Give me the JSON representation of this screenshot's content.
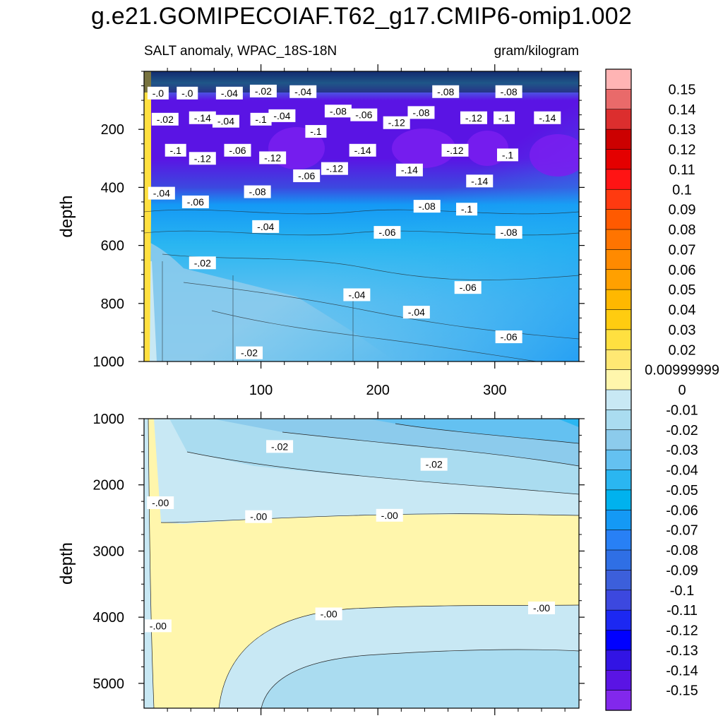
{
  "title": "g.e21.GOMIPECOIAF.T62_g17.CMIP6-omip1.002",
  "subtitle_left": "SALT anomaly, WPAC_18S-18N",
  "subtitle_right": "gram/kilogram",
  "chart_data": [
    {
      "type": "heatmap",
      "panel": "upper",
      "ylabel": "depth",
      "xlabel": "",
      "ylim": [
        1000,
        0
      ],
      "xlim": [
        0,
        372
      ],
      "x_ticks": [
        100,
        200,
        300
      ],
      "y_ticks": [
        200,
        400,
        600,
        800,
        1000
      ],
      "contour_labels": [
        {
          "text": "-.0",
          "x": 12,
          "y": 75
        },
        {
          "text": "-.0",
          "x": 37,
          "y": 75
        },
        {
          "text": "-.04",
          "x": 73,
          "y": 75
        },
        {
          "text": "-.02",
          "x": 102,
          "y": 68
        },
        {
          "text": "-.04",
          "x": 136,
          "y": 70
        },
        {
          "text": "-.08",
          "x": 258,
          "y": 70
        },
        {
          "text": "-.08",
          "x": 312,
          "y": 70
        },
        {
          "text": "-.02",
          "x": 18,
          "y": 165
        },
        {
          "text": "-.14",
          "x": 50,
          "y": 160
        },
        {
          "text": "-.04",
          "x": 70,
          "y": 172
        },
        {
          "text": "-.1",
          "x": 100,
          "y": 165
        },
        {
          "text": "-.04",
          "x": 118,
          "y": 153
        },
        {
          "text": "-.08",
          "x": 166,
          "y": 137
        },
        {
          "text": "-.06",
          "x": 188,
          "y": 150
        },
        {
          "text": "-.08",
          "x": 237,
          "y": 142
        },
        {
          "text": "-.12",
          "x": 216,
          "y": 177
        },
        {
          "text": "-.12",
          "x": 282,
          "y": 160
        },
        {
          "text": "-.1",
          "x": 308,
          "y": 160
        },
        {
          "text": "-.14",
          "x": 345,
          "y": 160
        },
        {
          "text": "-.1",
          "x": 147,
          "y": 207
        },
        {
          "text": "-.1",
          "x": 27,
          "y": 272
        },
        {
          "text": "-.12",
          "x": 50,
          "y": 300
        },
        {
          "text": "-.06",
          "x": 80,
          "y": 272
        },
        {
          "text": "-.12",
          "x": 110,
          "y": 298
        },
        {
          "text": "-.14",
          "x": 187,
          "y": 272
        },
        {
          "text": "-.12",
          "x": 266,
          "y": 272
        },
        {
          "text": "-.1",
          "x": 311,
          "y": 288
        },
        {
          "text": "-.06",
          "x": 139,
          "y": 360
        },
        {
          "text": "-.12",
          "x": 163,
          "y": 335
        },
        {
          "text": "-.14",
          "x": 227,
          "y": 340
        },
        {
          "text": "-.14",
          "x": 287,
          "y": 378
        },
        {
          "text": "-.04",
          "x": 15,
          "y": 420
        },
        {
          "text": "-.06",
          "x": 44,
          "y": 450
        },
        {
          "text": "-.08",
          "x": 97,
          "y": 415
        },
        {
          "text": "-.08",
          "x": 242,
          "y": 465
        },
        {
          "text": "-.1",
          "x": 276,
          "y": 475
        },
        {
          "text": "-.04",
          "x": 104,
          "y": 535
        },
        {
          "text": "-.06",
          "x": 208,
          "y": 555
        },
        {
          "text": "-.08",
          "x": 312,
          "y": 555
        },
        {
          "text": "-.02",
          "x": 50,
          "y": 660
        },
        {
          "text": "-.06",
          "x": 277,
          "y": 745
        },
        {
          "text": "-.04",
          "x": 182,
          "y": 770
        },
        {
          "text": "-.04",
          "x": 233,
          "y": 830
        },
        {
          "text": "-.06",
          "x": 312,
          "y": 915
        },
        {
          "text": "-.02",
          "x": 90,
          "y": 970
        }
      ]
    },
    {
      "type": "heatmap",
      "panel": "lower",
      "ylabel": "depth",
      "xlabel": "",
      "ylim": [
        5375,
        1000
      ],
      "xlim": [
        0,
        372
      ],
      "x_ticks": [
        100,
        200,
        300
      ],
      "y_ticks": [
        1000,
        2000,
        3000,
        4000,
        5000
      ],
      "contour_labels": [
        {
          "text": "-.02",
          "x": 116,
          "y": 1420
        },
        {
          "text": "-.02",
          "x": 248,
          "y": 1690
        },
        {
          "text": "-.00",
          "x": 14,
          "y": 2270
        },
        {
          "text": "-.00",
          "x": 98,
          "y": 2480
        },
        {
          "text": "-.00",
          "x": 210,
          "y": 2460
        },
        {
          "text": "-.00",
          "x": 158,
          "y": 3950
        },
        {
          "text": "-.00",
          "x": 340,
          "y": 3860
        },
        {
          "text": "-.00",
          "x": 12,
          "y": 4130
        }
      ]
    }
  ],
  "colorbar": {
    "labels": [
      "0.15",
      "0.14",
      "0.13",
      "0.12",
      "0.11",
      "0.1",
      "0.09",
      "0.08",
      "0.07",
      "0.06",
      "0.05",
      "0.04",
      "0.03",
      "0.02",
      "0.00999999",
      "0",
      "-0.01",
      "-0.02",
      "-0.03",
      "-0.04",
      "-0.05",
      "-0.06",
      "-0.07",
      "-0.08",
      "-0.09",
      "-0.1",
      "-0.11",
      "-0.12",
      "-0.13",
      "-0.14",
      "-0.15"
    ],
    "colors": [
      "#ffb4b4",
      "#e96a6a",
      "#dc2e2e",
      "#cc0000",
      "#e40000",
      "#ff1414",
      "#ff3a10",
      "#ff5a00",
      "#ff7400",
      "#ff8a00",
      "#ffa000",
      "#ffb800",
      "#ffcc10",
      "#ffe040",
      "#ffe873",
      "#fff6ac",
      "#c8e8f4",
      "#aadcf0",
      "#8ccbec",
      "#64c1f1",
      "#2ab6f1",
      "#00b2ee",
      "#1499f5",
      "#2880f5",
      "#2f6fe5",
      "#3c5fdb",
      "#3c48df",
      "#1c28f2",
      "#0000ff",
      "#3214e4",
      "#5a14e4",
      "#8228ec"
    ]
  }
}
